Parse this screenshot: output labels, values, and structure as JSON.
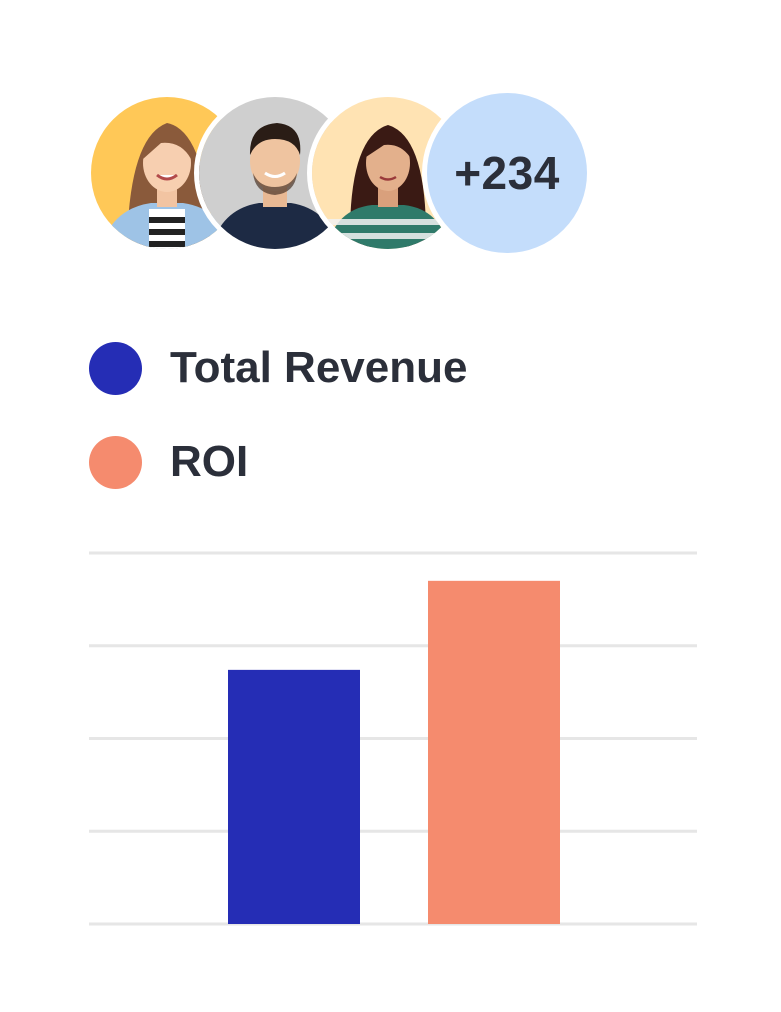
{
  "avatars": {
    "people": [
      {
        "name_icon": "woman-avatar-icon",
        "bg": "#ffc857"
      },
      {
        "name_icon": "man-avatar-icon",
        "bg": "#cfcfcf"
      },
      {
        "name_icon": "woman-avatar-icon",
        "bg": "#ffe3b3"
      }
    ],
    "more_count": "+234",
    "more_bg": "#c4ddfb"
  },
  "legend": {
    "items": [
      {
        "label": "Total Revenue",
        "color": "#252db5"
      },
      {
        "label": "ROI",
        "color": "#f58b6e"
      }
    ]
  },
  "chart_data": {
    "type": "bar",
    "categories": [
      "Total Revenue",
      "ROI"
    ],
    "values": [
      2.74,
      3.7
    ],
    "ylim": [
      0,
      4
    ],
    "grid": true,
    "colors": [
      "#252db5",
      "#f58b6e"
    ],
    "title": "",
    "xlabel": "",
    "ylabel": ""
  }
}
